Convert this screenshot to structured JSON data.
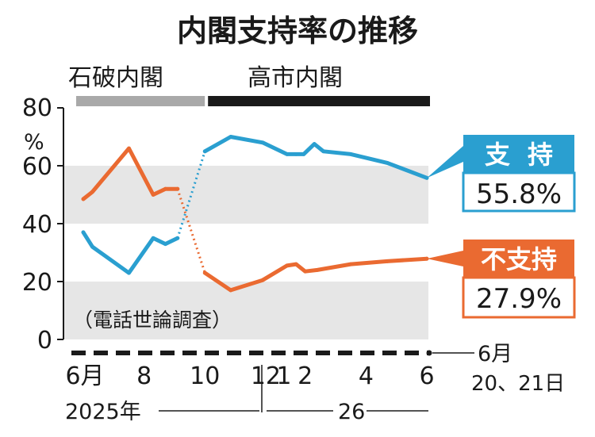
{
  "chart_data": {
    "type": "line",
    "title": "内閣支持率の推移",
    "note": "（電話世論調査）",
    "ylabel_unit": "%",
    "ylim": [
      0,
      80
    ],
    "y_ticks": [
      0,
      20,
      40,
      60,
      80
    ],
    "shaded_bands": [
      [
        0,
        20
      ],
      [
        40,
        60
      ]
    ],
    "x_tick_labels": [
      {
        "label": "6月",
        "t": 0
      },
      {
        "label": "8",
        "t": 2
      },
      {
        "label": "10",
        "t": 4
      },
      {
        "label": "12",
        "t": 6
      },
      {
        "label": "1",
        "t": 6.6
      },
      {
        "label": "2",
        "t": 7.3
      },
      {
        "label": "4",
        "t": 9.3
      },
      {
        "label": "6",
        "t": 11.3
      }
    ],
    "x_year_labels": {
      "y2025": "2025年",
      "y2026": "26"
    },
    "end_date_label": {
      "line1": "6月",
      "line2": "20、21日"
    },
    "cabinets": [
      {
        "name": "石破内閣",
        "color": "#a9a9a9",
        "t_start": 0,
        "t_end": 4.05
      },
      {
        "name": "高市内閣",
        "color": "#1a1a1a",
        "t_start": 4.05,
        "t_end": 11.3
      }
    ],
    "series": [
      {
        "name": "支持",
        "latest_value_label": "55.8%",
        "color": "#2a9fd0",
        "points": [
          {
            "t": 0.0,
            "v": 37
          },
          {
            "t": 0.3,
            "v": 32
          },
          {
            "t": 1.5,
            "v": 23
          },
          {
            "t": 2.3,
            "v": 35
          },
          {
            "t": 2.7,
            "v": 33
          },
          {
            "t": 3.1,
            "v": 35
          },
          {
            "t": 4.0,
            "v": 65
          },
          {
            "t": 4.85,
            "v": 70
          },
          {
            "t": 5.9,
            "v": 68
          },
          {
            "t": 6.7,
            "v": 64
          },
          {
            "t": 7.0,
            "v": 64
          },
          {
            "t": 7.25,
            "v": 64
          },
          {
            "t": 7.6,
            "v": 67.5
          },
          {
            "t": 7.9,
            "v": 65
          },
          {
            "t": 8.8,
            "v": 64
          },
          {
            "t": 10.0,
            "v": 61
          },
          {
            "t": 11.3,
            "v": 55.8
          }
        ],
        "dotted_segment_after_index": 5
      },
      {
        "name": "不支持",
        "latest_value_label": "27.9%",
        "color": "#ea6a31",
        "points": [
          {
            "t": 0.0,
            "v": 48.5
          },
          {
            "t": 0.3,
            "v": 51
          },
          {
            "t": 1.5,
            "v": 66
          },
          {
            "t": 2.3,
            "v": 50
          },
          {
            "t": 2.7,
            "v": 52
          },
          {
            "t": 3.1,
            "v": 52
          },
          {
            "t": 4.0,
            "v": 23
          },
          {
            "t": 4.85,
            "v": 17
          },
          {
            "t": 5.9,
            "v": 20.5
          },
          {
            "t": 6.7,
            "v": 25.5
          },
          {
            "t": 7.0,
            "v": 26
          },
          {
            "t": 7.3,
            "v": 23.5
          },
          {
            "t": 7.7,
            "v": 24
          },
          {
            "t": 8.8,
            "v": 26
          },
          {
            "t": 10.0,
            "v": 27
          },
          {
            "t": 11.3,
            "v": 27.9
          }
        ],
        "dotted_segment_after_index": 5
      }
    ]
  }
}
